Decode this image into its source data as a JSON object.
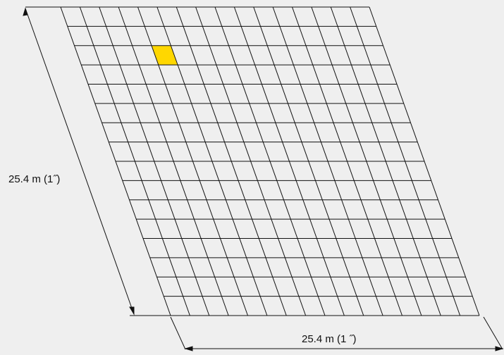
{
  "figure": {
    "grid": {
      "rows": 16,
      "cols": 16,
      "highlighted_cell": {
        "row": 3,
        "col": 4
      }
    },
    "dimension_vertical": "25.4 m (1˝)",
    "dimension_horizontal": "25.4 m (1 ˝)",
    "colors": {
      "background": "#efefef",
      "line": "#111111",
      "highlight": "#ffd700"
    }
  }
}
